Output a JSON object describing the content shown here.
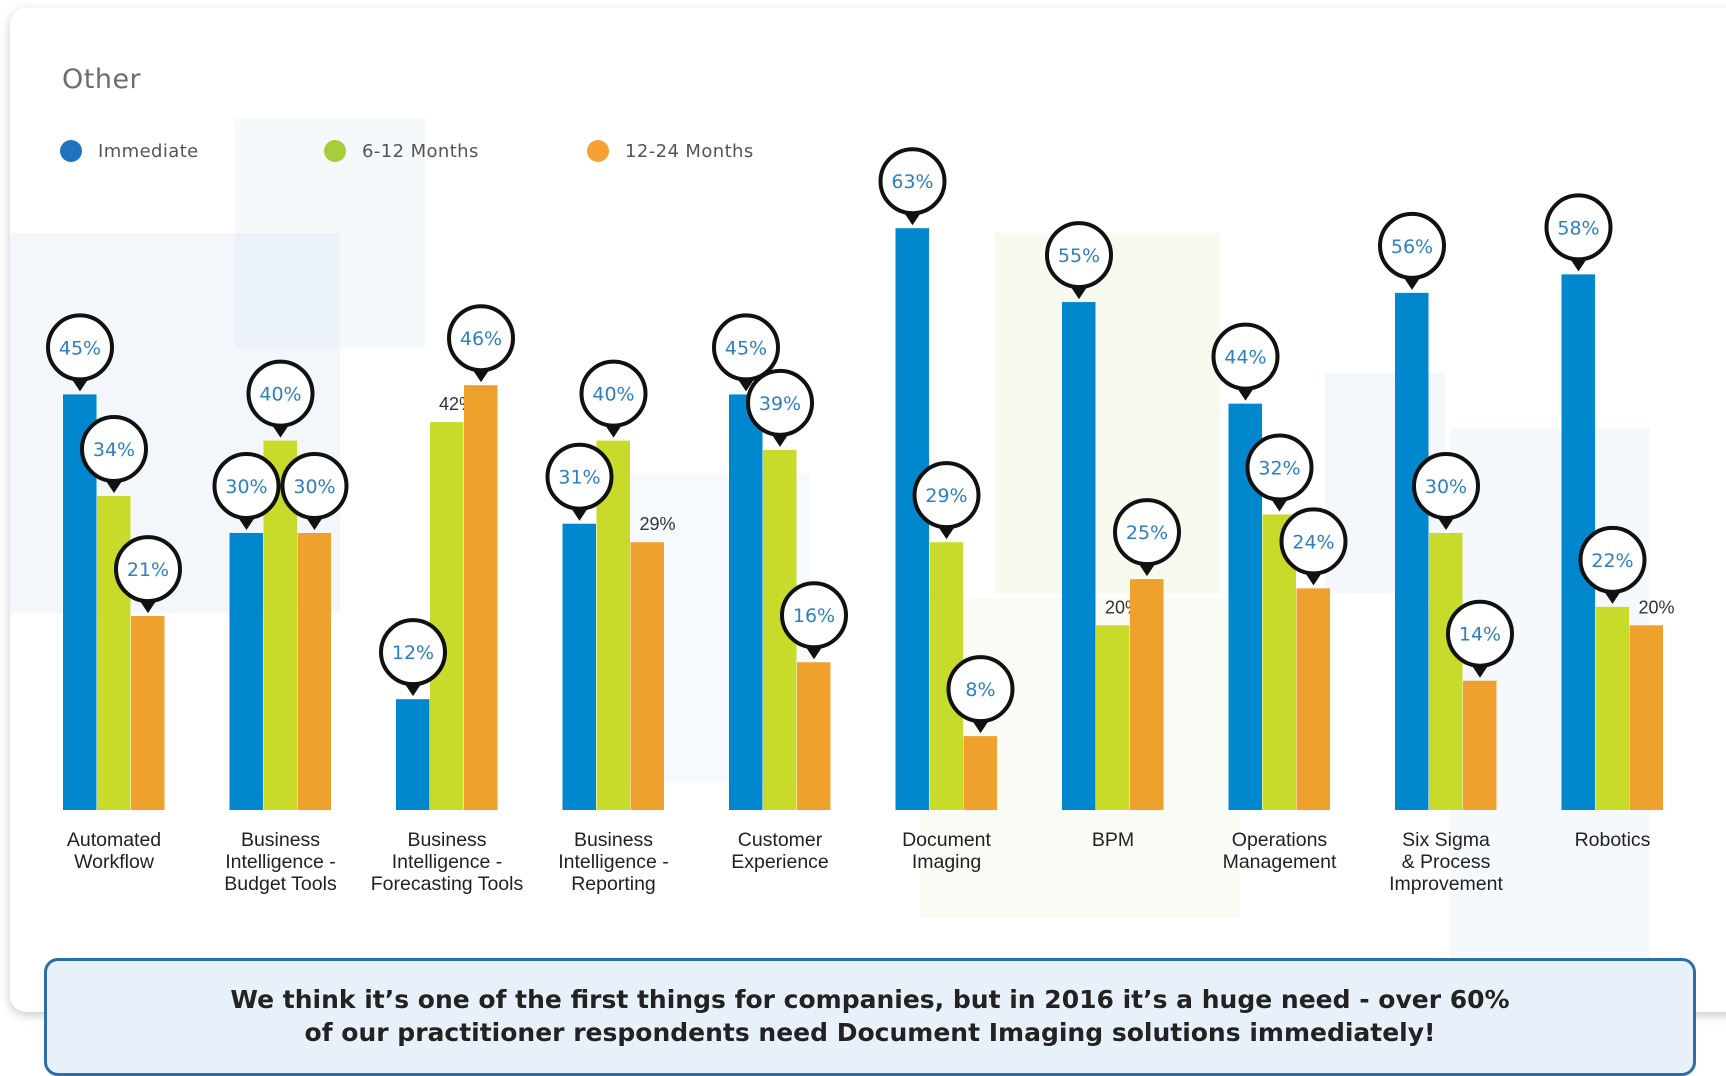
{
  "title": "Other",
  "colors": {
    "immediate": "#0087cd",
    "months_6_12": "#c8db2a",
    "months_12_24": "#efa12d",
    "callout_border": "#2c6ea8",
    "bubble_text": "#2e7fc2"
  },
  "legend": [
    {
      "label": "Immediate",
      "color": "#1e73be"
    },
    {
      "label": "6-12 Months",
      "color": "#a6ce39"
    },
    {
      "label": "12-24 Months",
      "color": "#f4a131"
    }
  ],
  "chart_data": {
    "type": "bar",
    "title": "Other",
    "categories": [
      [
        "Automated",
        "Workflow"
      ],
      [
        "Business",
        "Intelligence -",
        "Budget Tools"
      ],
      [
        "Business",
        "Intelligence -",
        "Forecasting Tools"
      ],
      [
        "Business",
        "Intelligence -",
        "Reporting"
      ],
      [
        "Customer",
        "Experience"
      ],
      [
        "Document",
        "Imaging"
      ],
      [
        "BPM"
      ],
      [
        "Operations",
        "Management"
      ],
      [
        "Six Sigma",
        "& Process",
        "Improvement"
      ],
      [
        "Robotics"
      ]
    ],
    "series": [
      {
        "name": "Immediate",
        "values": [
          45,
          30,
          12,
          31,
          45,
          63,
          55,
          44,
          56,
          58
        ]
      },
      {
        "name": "6-12 Months",
        "values": [
          34,
          40,
          42,
          40,
          39,
          29,
          20,
          32,
          30,
          22
        ]
      },
      {
        "name": "12-24 Months",
        "values": [
          21,
          30,
          46,
          29,
          16,
          8,
          25,
          24,
          14,
          20
        ]
      }
    ],
    "value_suffix": "%",
    "plain_labels": [
      [
        2,
        1
      ],
      [
        3,
        2
      ],
      [
        6,
        1
      ],
      [
        9,
        2
      ]
    ],
    "ylim": [
      0,
      63
    ],
    "legend_position": "top-left"
  },
  "callout": {
    "line1": "We think it’s one of the first things for companies, but in 2016 it’s a huge need - over 60%",
    "line2": "of our practitioner respondents need Document Imaging solutions immediately!"
  }
}
